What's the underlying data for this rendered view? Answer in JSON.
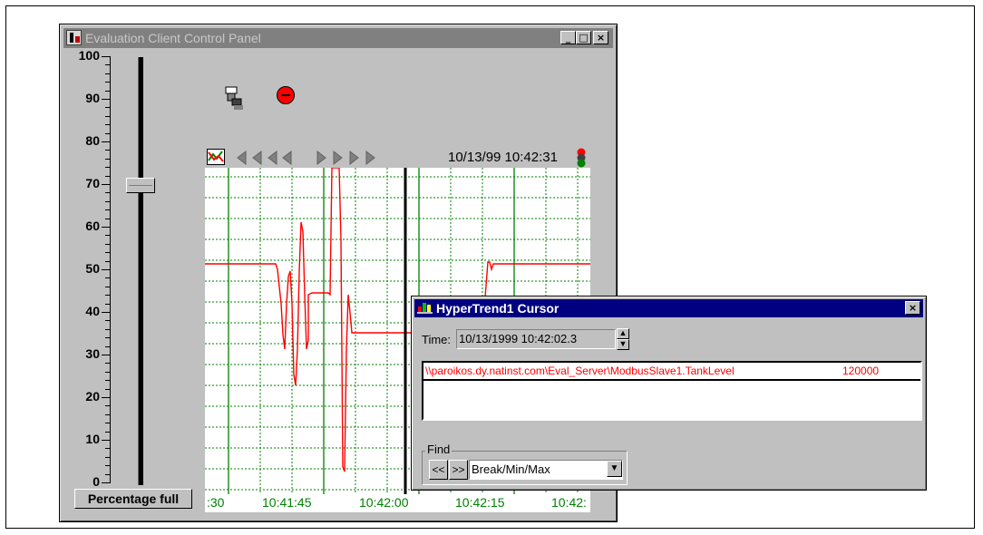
{
  "control_panel": {
    "title": "Evaluation Client Control Panel",
    "window_buttons": {
      "minimize": "_",
      "maximize": "□",
      "close": "×"
    },
    "scale_labels": [
      "100",
      "90",
      "80",
      "70",
      "60",
      "50",
      "40",
      "30",
      "20",
      "10",
      "0"
    ],
    "slider_value": 70,
    "slider_button_label": "Percentage full",
    "indicators": [
      "valve-icon",
      "alarm-indicator-icon"
    ]
  },
  "hypertrend": {
    "toolbar": {
      "timestamp": "10/13/99 10:42:31",
      "nav_icons": [
        "scroll-left-fast-icon",
        "scroll-left-icon",
        "scroll-left-step-icon",
        "scroll-left-small-icon",
        "scroll-right-small-icon",
        "scroll-right-step-icon",
        "scroll-right-icon",
        "scroll-right-fast-icon"
      ],
      "status_icon": "traffic-light-icon",
      "legend_icon": "trend-legend-icon"
    },
    "time_labels": [
      ":30",
      "10:41:45",
      "10:42:00",
      "10:42:15",
      "10:42:"
    ],
    "colors": {
      "grid": "#008000",
      "trace": "#ff0000",
      "cursor": "#000000"
    }
  },
  "cursor_dialog": {
    "title": "HyperTrend1 Cursor",
    "time_label": "Time:",
    "time_value": "10/13/1999 10:42:02.3",
    "tag_name": "\\\\paroikos.dy.natinst.com\\Eval_Server\\ModbusSlave1.TankLevel",
    "tag_value": "120000",
    "find_label": "Find",
    "prev_label": "<<",
    "next_label": ">>",
    "find_mode": "Break/Min/Max"
  }
}
